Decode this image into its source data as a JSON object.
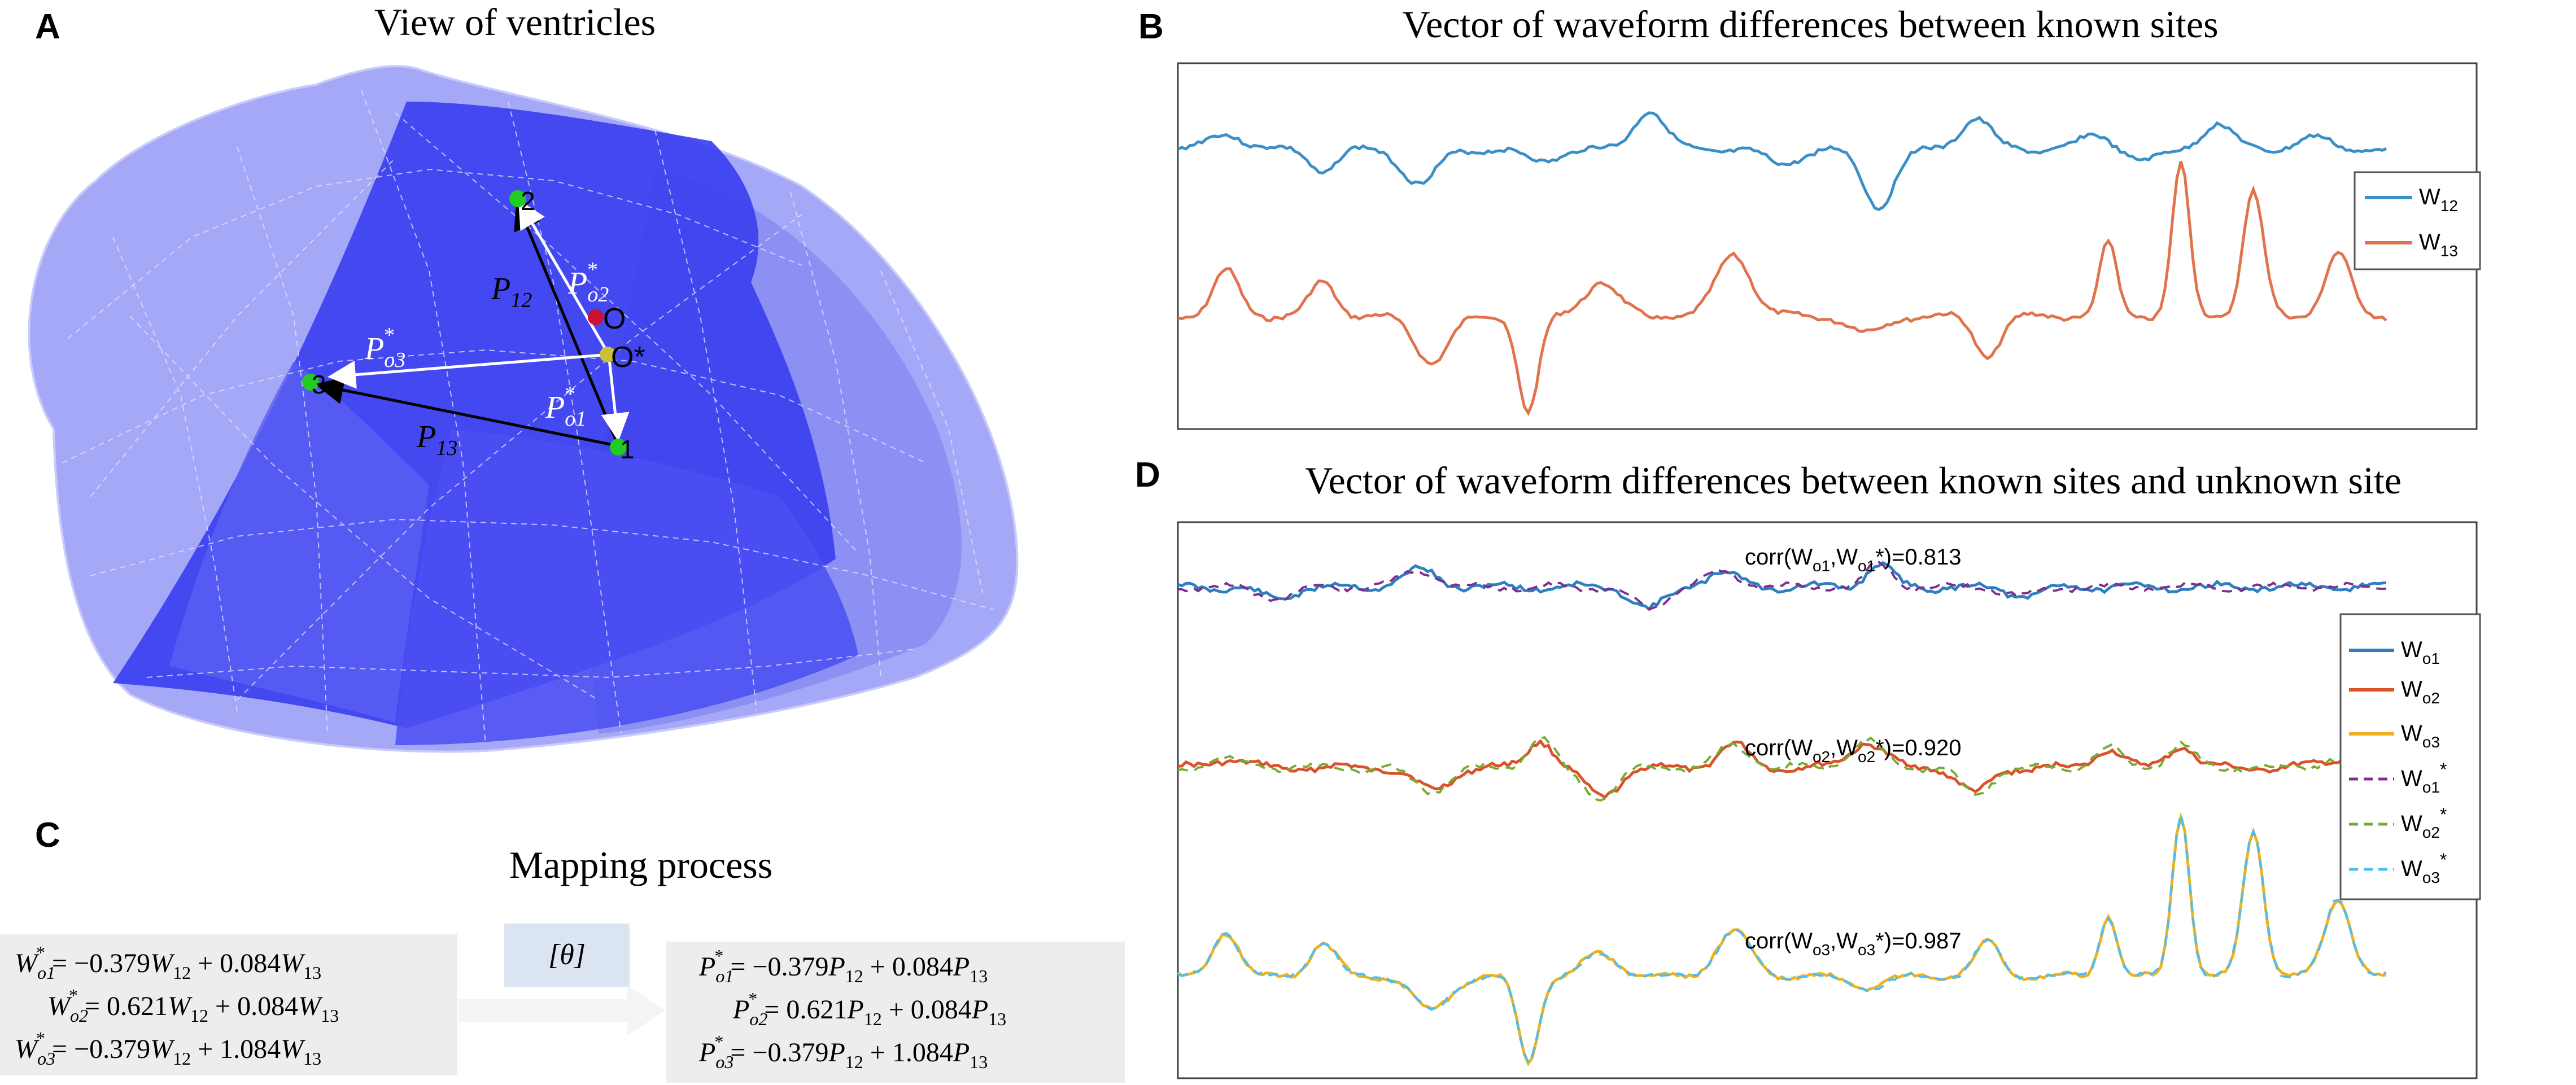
{
  "panels": {
    "A": {
      "letter": "A",
      "title": "View of ventricles",
      "vectors": {
        "p12": "P",
        "p12_sub": "12",
        "p13": "P",
        "p13_sub": "13",
        "po1": "P",
        "po1_sub": "o1",
        "po2": "P",
        "po2_sub": "o2",
        "po3": "P",
        "po3_sub": "o3",
        "star": "*"
      },
      "points": {
        "site1": "1",
        "site2": "2",
        "site3": "3",
        "origin": "O",
        "origin_star": "O*"
      }
    },
    "B": {
      "letter": "B",
      "title": "Vector of waveform differences between known sites",
      "legend": [
        {
          "label": "W",
          "sub": "12",
          "color": "#3a8fc8",
          "style": "solid"
        },
        {
          "label": "W",
          "sub": "13",
          "color": "#e0734c",
          "style": "solid"
        }
      ]
    },
    "C": {
      "letter": "C",
      "title": "Mapping process",
      "theta": "[θ]",
      "left_eqs": [
        {
          "lhs": "W",
          "lhs_sub": "o1",
          "rhs": "= −0.379",
          "t1": "W",
          "t1_sub": "12",
          "mid": " + 0.084",
          "t2": "W",
          "t2_sub": "13"
        },
        {
          "lhs": "W",
          "lhs_sub": "o2",
          "rhs": "= 0.621",
          "t1": "W",
          "t1_sub": "12",
          "mid": " + 0.084",
          "t2": "W",
          "t2_sub": "13"
        },
        {
          "lhs": "W",
          "lhs_sub": "o3",
          "rhs": "= −0.379",
          "t1": "W",
          "t1_sub": "12",
          "mid": " + 1.084",
          "t2": "W",
          "t2_sub": "13"
        }
      ],
      "right_eqs": [
        {
          "lhs": "P",
          "lhs_sub": "o1",
          "rhs": "= −0.379",
          "t1": "P",
          "t1_sub": "12",
          "mid": " + 0.084",
          "t2": "P",
          "t2_sub": "13"
        },
        {
          "lhs": "P",
          "lhs_sub": "o2",
          "rhs": "= 0.621",
          "t1": "P",
          "t1_sub": "12",
          "mid": " + 0.084",
          "t2": "P",
          "t2_sub": "13"
        },
        {
          "lhs": "P",
          "lhs_sub": "o3",
          "rhs": "= −0.379",
          "t1": "P",
          "t1_sub": "12",
          "mid": " + 1.084",
          "t2": "P",
          "t2_sub": "13"
        }
      ],
      "star": "*"
    },
    "D": {
      "letter": "D",
      "title": "Vector of waveform differences between known sites and unknown site",
      "corr": [
        {
          "pre": "corr(W",
          "s1": "o1",
          "mid": ",W",
          "s2": "o1",
          "post": "*)=0.813"
        },
        {
          "pre": "corr(W",
          "s1": "o2",
          "mid": ",W",
          "s2": "o2",
          "post": "*)=0.920"
        },
        {
          "pre": "corr(W",
          "s1": "o3",
          "mid": ",W",
          "s2": "o3",
          "post": "*)=0.987"
        }
      ],
      "legend": [
        {
          "label": "W",
          "sub": "o1",
          "star": "",
          "color": "#2f7fc0",
          "style": "solid"
        },
        {
          "label": "W",
          "sub": "o2",
          "star": "",
          "color": "#d9522b",
          "style": "solid"
        },
        {
          "label": "W",
          "sub": "o3",
          "star": "",
          "color": "#efb21e",
          "style": "solid"
        },
        {
          "label": "W",
          "sub": "o1",
          "star": "*",
          "color": "#7e2f8e",
          "style": "dashed"
        },
        {
          "label": "W",
          "sub": "o2",
          "star": "*",
          "color": "#77ac30",
          "style": "dashed"
        },
        {
          "label": "W",
          "sub": "o3",
          "star": "*",
          "color": "#4dbeee",
          "style": "dashed"
        }
      ]
    }
  },
  "colors": {
    "site_green": "#22cc22",
    "origin_red": "#cc1133",
    "origin_yellow": "#c9c23a",
    "mesh_light": "#9fa3f3",
    "mesh_dark": "#3b3ef0",
    "box_gray": "#ededed",
    "theta_blue": "#dbe4f1"
  }
}
